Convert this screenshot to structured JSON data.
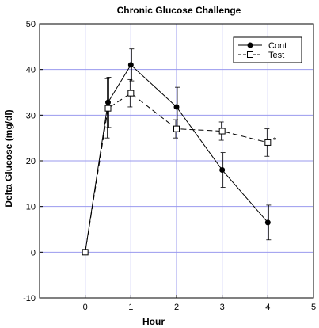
{
  "chart_data": {
    "type": "line",
    "title": "Chronic Glucose Challenge",
    "xlabel": "Hour",
    "ylabel": "Delta Glucose (mg/dl)",
    "xlim": [
      -1,
      5
    ],
    "ylim": [
      -10,
      50
    ],
    "xticks": [
      0,
      1,
      2,
      3,
      4,
      5
    ],
    "yticks": [
      -10,
      0,
      10,
      20,
      30,
      40,
      50
    ],
    "grid": true,
    "grid_color": "#9999ee",
    "legend_position": "top-right",
    "series": [
      {
        "name": "Cont",
        "marker": "filled-circle",
        "line_style": "solid",
        "color": "#000000",
        "x": [
          0,
          0.5,
          1,
          2,
          3,
          4
        ],
        "y": [
          0,
          32.8,
          41.0,
          31.8,
          18.0,
          6.5
        ],
        "error": [
          0,
          5.5,
          3.5,
          4.3,
          3.8,
          3.8
        ]
      },
      {
        "name": "Test",
        "marker": "open-square",
        "line_style": "dashed",
        "color": "#000000",
        "x": [
          0,
          0.5,
          1,
          2,
          3,
          4
        ],
        "y": [
          0,
          31.5,
          34.8,
          27.0,
          26.5,
          24.0
        ],
        "error": [
          0,
          6.5,
          3.0,
          2.0,
          2.0,
          3.0
        ]
      }
    ],
    "annotations": [
      {
        "text": "*",
        "x": 4.15,
        "y": 25.3
      }
    ]
  }
}
